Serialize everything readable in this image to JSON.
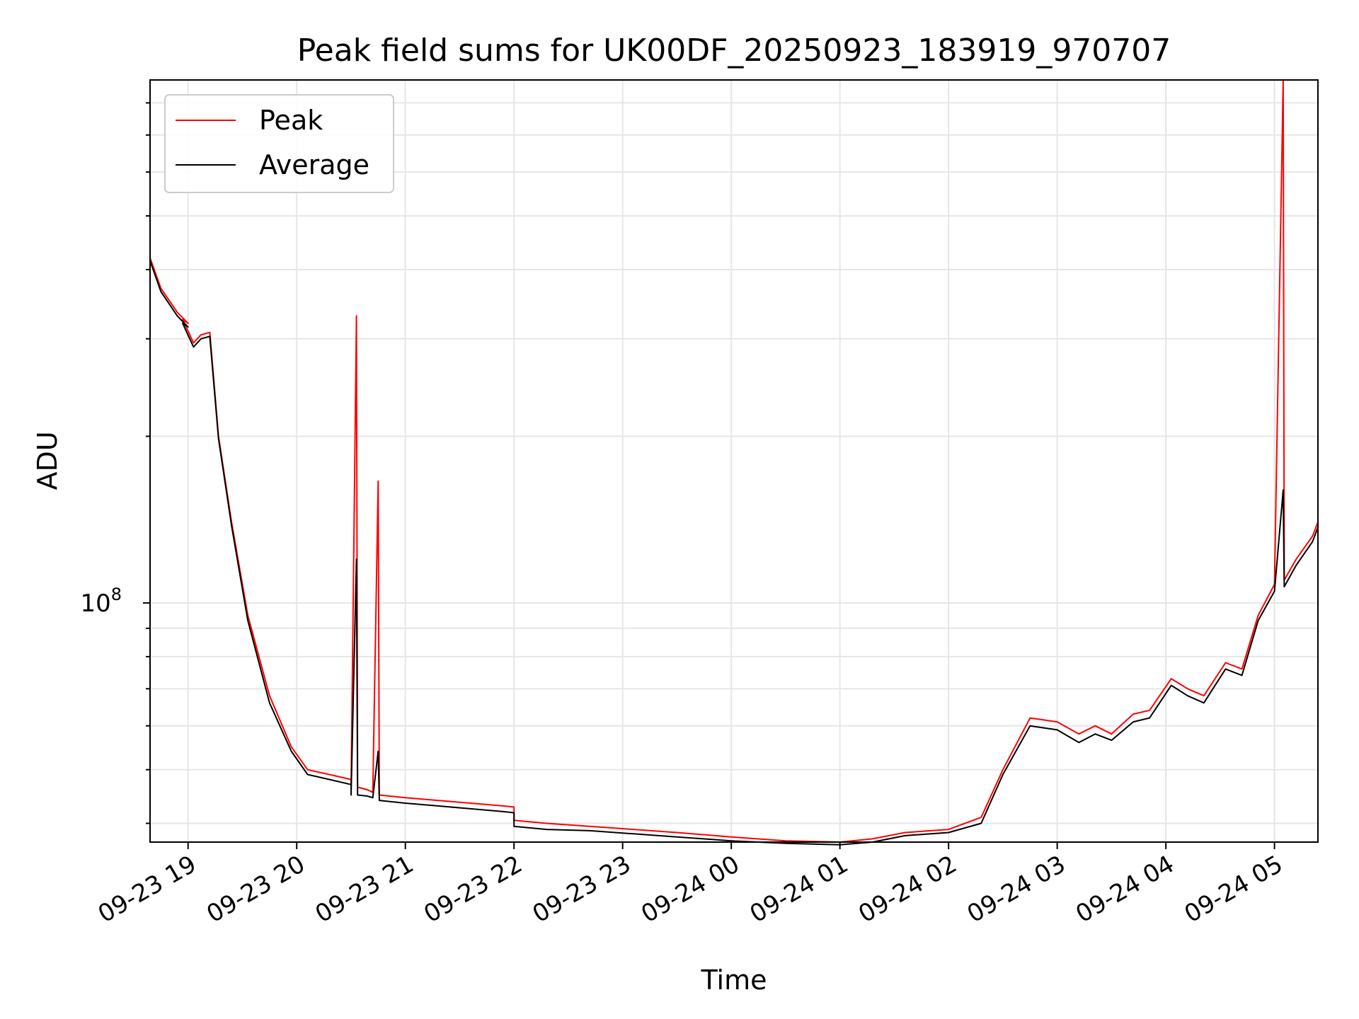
{
  "chart_data": {
    "type": "line",
    "title": "Peak field sums for UK00DF_20250923_183919_970707",
    "xlabel": "Time",
    "ylabel": "ADU",
    "yscale": "log",
    "ylim": [
      37000000,
      880000000
    ],
    "xlim_hours": [
      -0.35,
      10.4
    ],
    "grid": true,
    "legend_position": "upper-left",
    "x_ticks": [
      {
        "hour": 0,
        "label": "09-23 19"
      },
      {
        "hour": 1,
        "label": "09-23 20"
      },
      {
        "hour": 2,
        "label": "09-23 21"
      },
      {
        "hour": 3,
        "label": "09-23 22"
      },
      {
        "hour": 4,
        "label": "09-23 23"
      },
      {
        "hour": 5,
        "label": "09-24 00"
      },
      {
        "hour": 6,
        "label": "09-24 01"
      },
      {
        "hour": 7,
        "label": "09-24 02"
      },
      {
        "hour": 8,
        "label": "09-24 03"
      },
      {
        "hour": 9,
        "label": "09-24 04"
      },
      {
        "hour": 10,
        "label": "09-24 05"
      }
    ],
    "y_major_ticks": [
      {
        "value": 100000000,
        "base": "10",
        "exp": "8"
      }
    ],
    "y_minor_ticks": [
      40000000,
      50000000,
      60000000,
      70000000,
      80000000,
      90000000,
      200000000,
      300000000,
      400000000,
      500000000,
      600000000,
      700000000,
      800000000
    ],
    "series": [
      {
        "name": "Peak",
        "color": "#ff0000",
        "points": [
          [
            -0.35,
            420000000
          ],
          [
            -0.25,
            370000000
          ],
          [
            -0.1,
            335000000
          ],
          [
            0.0,
            320000000
          ],
          [
            -0.05,
            325000000
          ],
          [
            0.05,
            295000000
          ],
          [
            0.12,
            305000000
          ],
          [
            0.2,
            308000000
          ],
          [
            0.28,
            200000000
          ],
          [
            0.4,
            140000000
          ],
          [
            0.55,
            95000000
          ],
          [
            0.75,
            68000000
          ],
          [
            0.95,
            55000000
          ],
          [
            1.1,
            50000000
          ],
          [
            1.3,
            49000000
          ],
          [
            1.5,
            48000000
          ],
          [
            1.5,
            46000000
          ],
          [
            1.55,
            330000000
          ],
          [
            1.56,
            46500000
          ],
          [
            1.65,
            46000000
          ],
          [
            1.7,
            45500000
          ],
          [
            1.75,
            166000000
          ],
          [
            1.76,
            45000000
          ],
          [
            2.0,
            44500000
          ],
          [
            2.3,
            44000000
          ],
          [
            2.6,
            43500000
          ],
          [
            2.9,
            43000000
          ],
          [
            3.0,
            42800000
          ],
          [
            3.0,
            40500000
          ],
          [
            3.3,
            40000000
          ],
          [
            3.7,
            39500000
          ],
          [
            4.1,
            39000000
          ],
          [
            4.5,
            38500000
          ],
          [
            5.0,
            37800000
          ],
          [
            5.5,
            37200000
          ],
          [
            6.0,
            37000000
          ],
          [
            6.3,
            37500000
          ],
          [
            6.6,
            38500000
          ],
          [
            7.0,
            39000000
          ],
          [
            7.3,
            41000000
          ],
          [
            7.5,
            50000000
          ],
          [
            7.75,
            62000000
          ],
          [
            8.0,
            61000000
          ],
          [
            8.2,
            58000000
          ],
          [
            8.35,
            60000000
          ],
          [
            8.5,
            58000000
          ],
          [
            8.7,
            63000000
          ],
          [
            8.85,
            64000000
          ],
          [
            9.05,
            73000000
          ],
          [
            9.2,
            70000000
          ],
          [
            9.35,
            68000000
          ],
          [
            9.55,
            78000000
          ],
          [
            9.7,
            76000000
          ],
          [
            9.85,
            95000000
          ],
          [
            10.0,
            108000000
          ],
          [
            10.08,
            880000000
          ],
          [
            10.09,
            110000000
          ],
          [
            10.2,
            120000000
          ],
          [
            10.35,
            132000000
          ],
          [
            10.4,
            140000000
          ]
        ]
      },
      {
        "name": "Average",
        "color": "#000000",
        "points": [
          [
            -0.35,
            415000000
          ],
          [
            -0.25,
            365000000
          ],
          [
            -0.1,
            330000000
          ],
          [
            0.0,
            315000000
          ],
          [
            -0.05,
            320000000
          ],
          [
            0.05,
            290000000
          ],
          [
            0.12,
            300000000
          ],
          [
            0.2,
            303000000
          ],
          [
            0.28,
            198000000
          ],
          [
            0.4,
            138000000
          ],
          [
            0.55,
            93000000
          ],
          [
            0.75,
            66000000
          ],
          [
            0.95,
            54000000
          ],
          [
            1.1,
            49000000
          ],
          [
            1.3,
            48000000
          ],
          [
            1.5,
            47000000
          ],
          [
            1.5,
            45000000
          ],
          [
            1.55,
            120000000
          ],
          [
            1.56,
            45000000
          ],
          [
            1.65,
            44800000
          ],
          [
            1.7,
            44500000
          ],
          [
            1.75,
            54000000
          ],
          [
            1.76,
            44000000
          ],
          [
            2.0,
            43500000
          ],
          [
            2.3,
            43000000
          ],
          [
            2.6,
            42500000
          ],
          [
            2.9,
            42000000
          ],
          [
            3.0,
            41800000
          ],
          [
            3.0,
            39500000
          ],
          [
            3.3,
            39000000
          ],
          [
            3.7,
            38800000
          ],
          [
            4.1,
            38300000
          ],
          [
            4.5,
            37800000
          ],
          [
            5.0,
            37200000
          ],
          [
            5.5,
            36800000
          ],
          [
            6.0,
            36600000
          ],
          [
            6.3,
            37000000
          ],
          [
            6.6,
            38000000
          ],
          [
            7.0,
            38500000
          ],
          [
            7.3,
            40000000
          ],
          [
            7.5,
            49000000
          ],
          [
            7.75,
            60000000
          ],
          [
            8.0,
            59000000
          ],
          [
            8.2,
            56000000
          ],
          [
            8.35,
            58000000
          ],
          [
            8.5,
            56500000
          ],
          [
            8.7,
            61000000
          ],
          [
            8.85,
            62000000
          ],
          [
            9.05,
            71000000
          ],
          [
            9.2,
            68000000
          ],
          [
            9.35,
            66000000
          ],
          [
            9.55,
            76000000
          ],
          [
            9.7,
            74000000
          ],
          [
            9.85,
            93000000
          ],
          [
            10.0,
            105000000
          ],
          [
            10.08,
            160000000
          ],
          [
            10.09,
            107000000
          ],
          [
            10.2,
            117000000
          ],
          [
            10.35,
            129000000
          ],
          [
            10.4,
            137000000
          ]
        ]
      }
    ]
  }
}
